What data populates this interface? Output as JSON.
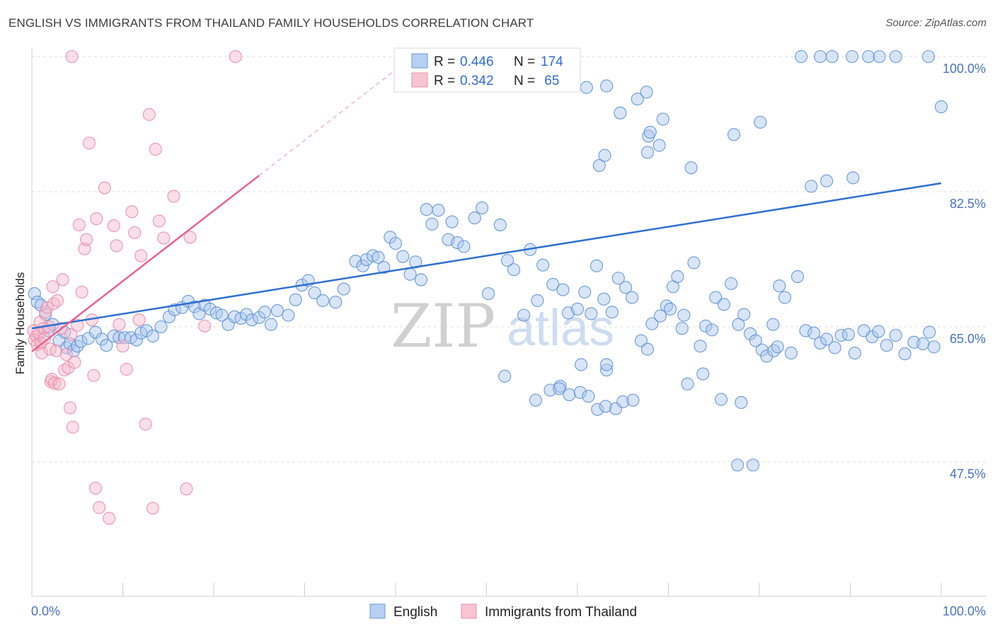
{
  "title": "ENGLISH VS IMMIGRANTS FROM THAILAND FAMILY HOUSEHOLDS CORRELATION CHART",
  "source": "Source: ZipAtlas.com",
  "watermark": {
    "part1": "ZIP",
    "part2": "atlas"
  },
  "legend_box": {
    "rows": [
      {
        "r_label": "R = ",
        "r_value": "0.446",
        "n_label": "N = ",
        "n_value": "174"
      },
      {
        "r_label": "R = ",
        "r_value": "0.342",
        "n_label": "N = ",
        "n_value": " 65"
      }
    ]
  },
  "bottom_legend": [
    "English",
    "Immigrants from Thailand"
  ],
  "colors": {
    "english_fill": "#a9c6ee",
    "english_stroke": "#5b8fd6",
    "english_line": "#2f6fd0",
    "thai_fill": "#f6b8cb",
    "thai_stroke": "#e98aa7",
    "thai_line": "#e8628e"
  },
  "chart_data": {
    "type": "scatter",
    "title": "ENGLISH VS IMMIGRANTS FROM THAILAND FAMILY HOUSEHOLDS CORRELATION CHART",
    "xlabel": "",
    "ylabel": "Family Households",
    "xlim": [
      0,
      100
    ],
    "ylim": [
      30,
      100
    ],
    "x_tick_labels": [
      "0.0%",
      "100.0%"
    ],
    "y_tick_labels": [
      "100.0%",
      "82.5%",
      "65.0%",
      "47.5%"
    ],
    "y_tick_values": [
      100,
      82.5,
      65,
      47.5
    ],
    "grid": "horizontal dashed",
    "legend_position": "top-center",
    "series": [
      {
        "name": "English",
        "R": 0.446,
        "N": 174,
        "trend": {
          "x": [
            0,
            100
          ],
          "y": [
            64.8,
            83.6
          ]
        },
        "points": [
          [
            0.3,
            69.3
          ],
          [
            0.6,
            68.2
          ],
          [
            1.0,
            67.8
          ],
          [
            1.5,
            66.6
          ],
          [
            1.8,
            64.5
          ],
          [
            2.3,
            65.3
          ],
          [
            3.0,
            63.2
          ],
          [
            3.6,
            64.3
          ],
          [
            3.8,
            62.3
          ],
          [
            4.2,
            62.8
          ],
          [
            4.6,
            61.9
          ],
          [
            5.0,
            62.5
          ],
          [
            5.4,
            63.1
          ],
          [
            6.2,
            63.5
          ],
          [
            7.0,
            64.3
          ],
          [
            7.7,
            63.4
          ],
          [
            8.2,
            62.6
          ],
          [
            9.0,
            63.8
          ],
          [
            9.6,
            63.6
          ],
          [
            10.2,
            63.6
          ],
          [
            10.9,
            63.6
          ],
          [
            11.5,
            63.3
          ],
          [
            12.0,
            64.2
          ],
          [
            12.6,
            64.5
          ],
          [
            13.3,
            63.8
          ],
          [
            14.2,
            65.0
          ],
          [
            15.1,
            66.3
          ],
          [
            15.7,
            67.2
          ],
          [
            16.5,
            67.5
          ],
          [
            17.2,
            68.3
          ],
          [
            17.9,
            67.6
          ],
          [
            18.4,
            66.7
          ],
          [
            19.0,
            67.8
          ],
          [
            19.6,
            67.3
          ],
          [
            20.3,
            66.8
          ],
          [
            20.9,
            66.5
          ],
          [
            21.6,
            65.3
          ],
          [
            22.3,
            66.3
          ],
          [
            23.0,
            66.1
          ],
          [
            23.6,
            66.6
          ],
          [
            24.2,
            65.9
          ],
          [
            25.0,
            66.2
          ],
          [
            25.6,
            66.9
          ],
          [
            26.3,
            65.3
          ],
          [
            27.0,
            67.1
          ],
          [
            28.2,
            66.5
          ],
          [
            29.0,
            68.5
          ],
          [
            29.7,
            70.4
          ],
          [
            30.4,
            71.0
          ],
          [
            31.1,
            69.4
          ],
          [
            32.0,
            68.4
          ],
          [
            33.4,
            68.2
          ],
          [
            34.3,
            69.9
          ],
          [
            35.6,
            73.5
          ],
          [
            36.4,
            72.9
          ],
          [
            36.8,
            73.7
          ],
          [
            37.5,
            74.2
          ],
          [
            38.1,
            74.0
          ],
          [
            38.7,
            72.7
          ],
          [
            39.4,
            76.6
          ],
          [
            40.0,
            75.8
          ],
          [
            40.8,
            74.1
          ],
          [
            41.6,
            71.8
          ],
          [
            42.2,
            73.4
          ],
          [
            42.8,
            71.1
          ],
          [
            43.4,
            80.2
          ],
          [
            44.0,
            78.3
          ],
          [
            44.7,
            80.1
          ],
          [
            45.8,
            76.3
          ],
          [
            46.2,
            78.6
          ],
          [
            46.8,
            75.9
          ],
          [
            47.5,
            75.4
          ],
          [
            48.7,
            79.1
          ],
          [
            49.5,
            80.4
          ],
          [
            50.2,
            69.3
          ],
          [
            51.5,
            78.2
          ],
          [
            52.3,
            73.6
          ],
          [
            53.0,
            72.4
          ],
          [
            54.1,
            66.5
          ],
          [
            54.8,
            75.0
          ],
          [
            55.6,
            68.4
          ],
          [
            56.2,
            73.0
          ],
          [
            57.3,
            70.5
          ],
          [
            58.4,
            69.8
          ],
          [
            59.0,
            66.8
          ],
          [
            60.0,
            67.3
          ],
          [
            60.8,
            69.5
          ],
          [
            61.5,
            66.7
          ],
          [
            62.1,
            72.9
          ],
          [
            62.9,
            68.6
          ],
          [
            63.8,
            66.9
          ],
          [
            64.5,
            71.3
          ],
          [
            65.3,
            70.1
          ],
          [
            66.0,
            68.8
          ],
          [
            67.0,
            63.2
          ],
          [
            67.7,
            62.1
          ],
          [
            68.2,
            65.4
          ],
          [
            69.1,
            66.4
          ],
          [
            69.8,
            67.7
          ],
          [
            70.5,
            70.2
          ],
          [
            71.0,
            71.5
          ],
          [
            71.7,
            66.5
          ],
          [
            72.8,
            73.3
          ],
          [
            73.5,
            62.5
          ],
          [
            74.1,
            65.1
          ],
          [
            74.8,
            64.6
          ],
          [
            75.2,
            68.8
          ],
          [
            76.1,
            67.9
          ],
          [
            76.9,
            70.6
          ],
          [
            77.7,
            65.3
          ],
          [
            78.3,
            66.6
          ],
          [
            79.0,
            64.1
          ],
          [
            79.6,
            63.2
          ],
          [
            80.3,
            62.0
          ],
          [
            80.8,
            61.2
          ],
          [
            81.5,
            65.3
          ],
          [
            82.2,
            70.3
          ],
          [
            82.8,
            68.8
          ],
          [
            83.5,
            61.6
          ],
          [
            84.2,
            71.5
          ],
          [
            85.1,
            64.5
          ],
          [
            86.0,
            64.2
          ],
          [
            86.7,
            62.9
          ],
          [
            87.4,
            63.4
          ],
          [
            88.3,
            62.3
          ],
          [
            89.0,
            63.9
          ],
          [
            89.8,
            64.0
          ],
          [
            90.5,
            61.6
          ],
          [
            91.5,
            64.5
          ],
          [
            92.4,
            63.7
          ],
          [
            93.1,
            64.4
          ],
          [
            94.0,
            62.6
          ],
          [
            95.0,
            63.9
          ],
          [
            96.0,
            61.5
          ],
          [
            97.0,
            63.0
          ],
          [
            98.0,
            62.8
          ],
          [
            98.7,
            64.3
          ],
          [
            99.2,
            62.4
          ],
          [
            52.0,
            58.6
          ],
          [
            55.4,
            55.5
          ],
          [
            57.0,
            56.8
          ],
          [
            58.1,
            57.3
          ],
          [
            59.1,
            56.2
          ],
          [
            60.3,
            56.5
          ],
          [
            61.2,
            56.0
          ],
          [
            62.2,
            54.3
          ],
          [
            63.1,
            54.7
          ],
          [
            64.2,
            54.4
          ],
          [
            65.0,
            55.3
          ],
          [
            66.1,
            55.5
          ],
          [
            84.6,
            100
          ],
          [
            86.7,
            100
          ],
          [
            88.0,
            100
          ],
          [
            90.2,
            100
          ],
          [
            92.0,
            100
          ],
          [
            93.2,
            100
          ],
          [
            95.0,
            100
          ],
          [
            98.6,
            100
          ],
          [
            100,
            93.5
          ],
          [
            63.2,
            59.4
          ],
          [
            63.2,
            60.1
          ],
          [
            60.4,
            60.1
          ],
          [
            58.0,
            57.0
          ],
          [
            70.2,
            67.3
          ],
          [
            71.5,
            64.8
          ],
          [
            72.1,
            57.6
          ],
          [
            73.8,
            58.9
          ],
          [
            77.6,
            47.1
          ],
          [
            79.3,
            47.1
          ],
          [
            75.8,
            55.6
          ],
          [
            81.6,
            61.9
          ],
          [
            82.0,
            62.4
          ],
          [
            78.0,
            55.2
          ],
          [
            61.0,
            96.0
          ],
          [
            63.2,
            96.2
          ],
          [
            64.7,
            92.7
          ],
          [
            66.6,
            94.5
          ],
          [
            67.6,
            95.4
          ],
          [
            69.4,
            91.9
          ],
          [
            67.8,
            89.7
          ],
          [
            68.0,
            90.2
          ],
          [
            69.0,
            88.5
          ],
          [
            62.4,
            85.9
          ],
          [
            63.0,
            87.2
          ],
          [
            67.7,
            87.6
          ],
          [
            72.5,
            85.6
          ],
          [
            77.2,
            89.9
          ],
          [
            80.1,
            91.5
          ],
          [
            85.7,
            83.2
          ],
          [
            87.4,
            83.9
          ],
          [
            90.3,
            84.3
          ]
        ]
      },
      {
        "name": "Immigrants from Thailand",
        "R": 0.342,
        "N": 65,
        "trend": {
          "x": [
            0,
            25
          ],
          "y": [
            61.8,
            84.6
          ]
        },
        "points": [
          [
            0.2,
            64.5
          ],
          [
            0.3,
            63.3
          ],
          [
            0.5,
            63.8
          ],
          [
            0.6,
            62.7
          ],
          [
            0.8,
            64.1
          ],
          [
            0.9,
            65.6
          ],
          [
            1.0,
            62.9
          ],
          [
            1.1,
            61.6
          ],
          [
            1.3,
            64.8
          ],
          [
            1.4,
            63.5
          ],
          [
            1.5,
            66.9
          ],
          [
            1.7,
            67.5
          ],
          [
            1.9,
            65.0
          ],
          [
            2.0,
            62.1
          ],
          [
            2.1,
            57.9
          ],
          [
            2.2,
            58.2
          ],
          [
            2.3,
            70.2
          ],
          [
            2.4,
            68.0
          ],
          [
            2.5,
            57.7
          ],
          [
            2.7,
            61.9
          ],
          [
            2.8,
            68.4
          ],
          [
            3.0,
            57.6
          ],
          [
            3.2,
            64.8
          ],
          [
            3.4,
            71.1
          ],
          [
            3.6,
            59.4
          ],
          [
            3.8,
            61.4
          ],
          [
            4.0,
            59.7
          ],
          [
            4.2,
            54.5
          ],
          [
            4.3,
            64.0
          ],
          [
            4.5,
            52.0
          ],
          [
            4.7,
            60.4
          ],
          [
            5.0,
            65.2
          ],
          [
            5.2,
            78.2
          ],
          [
            5.5,
            69.5
          ],
          [
            5.8,
            75.1
          ],
          [
            6.0,
            76.3
          ],
          [
            6.3,
            88.8
          ],
          [
            6.6,
            65.9
          ],
          [
            6.8,
            58.7
          ],
          [
            7.0,
            44.1
          ],
          [
            7.1,
            79.0
          ],
          [
            7.4,
            41.6
          ],
          [
            8.0,
            83.0
          ],
          [
            8.5,
            40.2
          ],
          [
            9.0,
            78.1
          ],
          [
            9.3,
            75.5
          ],
          [
            9.6,
            65.3
          ],
          [
            10.0,
            62.5
          ],
          [
            10.4,
            59.5
          ],
          [
            11.0,
            79.9
          ],
          [
            11.3,
            77.2
          ],
          [
            11.8,
            65.9
          ],
          [
            12.0,
            74.2
          ],
          [
            12.5,
            52.4
          ],
          [
            12.9,
            92.5
          ],
          [
            13.3,
            41.5
          ],
          [
            13.6,
            88.0
          ],
          [
            14.0,
            78.7
          ],
          [
            14.5,
            76.5
          ],
          [
            15.6,
            81.9
          ],
          [
            17.0,
            44.0
          ],
          [
            17.4,
            76.6
          ],
          [
            19.0,
            65.1
          ],
          [
            22.4,
            100
          ],
          [
            4.4,
            100
          ]
        ]
      }
    ]
  }
}
